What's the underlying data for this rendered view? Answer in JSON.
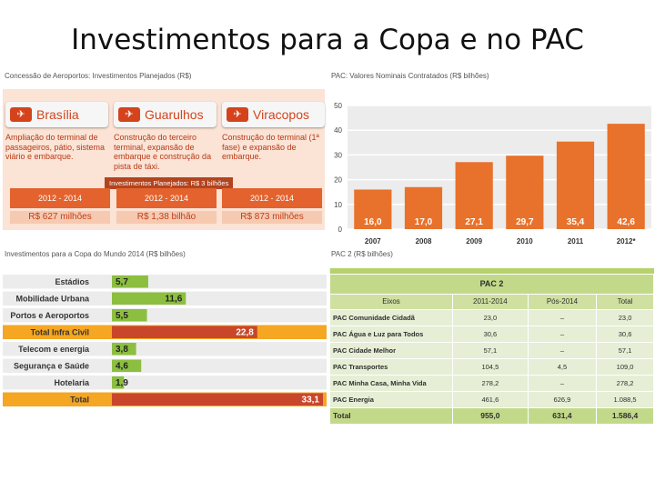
{
  "title": "Investimentos para a Copa e no PAC",
  "airports": {
    "label": "Concessão de Aeroportos: Investimentos Planejados (R$)",
    "items": [
      {
        "name": "Brasília",
        "description": "Ampliação do terminal de passageiros, pátio, sistema viário e embarque.",
        "period": "2012 - 2014",
        "value": "R$ 627 milhões"
      },
      {
        "name": "Guarulhos",
        "description": "Construção do terceiro terminal, expansão de embarque e construção da pista de táxi.",
        "period": "2012 - 2014",
        "value": "R$ 1,38 bilhão"
      },
      {
        "name": "Viracopos",
        "description": "Construção do terminal (1ª fase) e expansão de embarque.",
        "period": "2012 - 2014",
        "value": "R$ 873 milhões"
      }
    ],
    "total_tag": "Investimentos Planejados: R$ 3 bilhões"
  },
  "pac_chart": {
    "label": "PAC: Valores Nominais Contratados (R$ bilhões)",
    "chart_data": {
      "type": "bar",
      "categories": [
        "2007",
        "2008",
        "2009",
        "2010",
        "2011",
        "2012*"
      ],
      "values": [
        16.0,
        17.0,
        27.1,
        29.7,
        35.4,
        42.6
      ],
      "value_labels": [
        "16,0",
        "17,0",
        "27,1",
        "29,7",
        "35,4",
        "42,6"
      ],
      "yticks": [
        0,
        10,
        20,
        30,
        40,
        50
      ],
      "ylim": [
        0,
        50
      ],
      "bar_color": "#e8722b",
      "background_color": "#ececec",
      "grid": true
    }
  },
  "copa_bars": {
    "label": "Investimentos para a Copa do Mundo 2014 (R$ bilhões)",
    "chart_data": {
      "type": "bar",
      "orientation": "horizontal",
      "categories": [
        "Estádios",
        "Mobilidade Urbana",
        "Portos e Aeroportos",
        "Total Infra Civil",
        "Telecom e energia",
        "Segurança e Saúde",
        "Hotelaria",
        "Total"
      ],
      "values": [
        5.7,
        11.6,
        5.5,
        22.8,
        3.8,
        4.6,
        1.9,
        33.1
      ],
      "value_labels": [
        "5,7",
        "11,6",
        "5,5",
        "22,8",
        "3,8",
        "4,6",
        "1,9",
        "33,1"
      ],
      "highlight": [
        false,
        false,
        false,
        true,
        false,
        false,
        false,
        true
      ],
      "xlim": [
        0,
        33.1
      ],
      "bar_color": "#8cbf3f",
      "highlight_color": "#c9462a",
      "highlight_row_color": "#f5a623"
    }
  },
  "pac2_table": {
    "label": "PAC 2 (R$ bilhões)",
    "title": "PAC 2",
    "headers": [
      "Eixos",
      "2011-2014",
      "Pós-2014",
      "Total"
    ],
    "rows": [
      [
        "PAC Comunidade Cidadã",
        "23,0",
        "–",
        "23,0"
      ],
      [
        "PAC Água e Luz para Todos",
        "30,6",
        "–",
        "30,6"
      ],
      [
        "PAC Cidade Melhor",
        "57,1",
        "–",
        "57,1"
      ],
      [
        "PAC Transportes",
        "104,5",
        "4,5",
        "109,0"
      ],
      [
        "PAC Minha Casa, Minha Vida",
        "278,2",
        "–",
        "278,2"
      ],
      [
        "PAC Energia",
        "461,6",
        "626,9",
        "1.088,5"
      ]
    ],
    "total": [
      "Total",
      "955,0",
      "631,4",
      "1.586,4"
    ]
  }
}
